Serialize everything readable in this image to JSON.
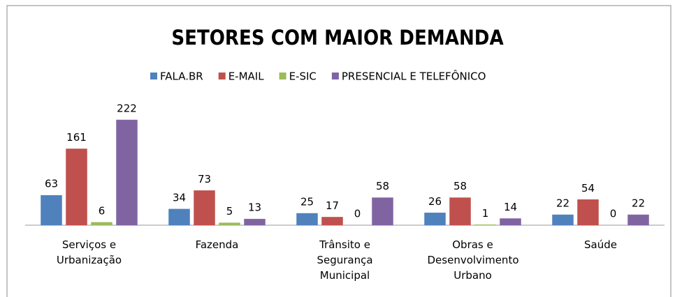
{
  "chart_data": {
    "type": "bar",
    "title": "SETORES COM MAIOR DEMANDA",
    "categories": [
      "Serviços e Urbanização",
      "Fazenda",
      "Trânsito e Segurança Municipal",
      "Obras e Desenvolvimento Urbano",
      "Saúde"
    ],
    "series": [
      {
        "name": "FALA.BR",
        "color": "#4f81bd",
        "values": [
          63,
          34,
          25,
          26,
          22
        ]
      },
      {
        "name": "E-MAIL",
        "color": "#c0504d",
        "values": [
          161,
          73,
          17,
          58,
          54
        ]
      },
      {
        "name": "E-SIC",
        "color": "#9bbb59",
        "values": [
          6,
          5,
          0,
          1,
          0
        ]
      },
      {
        "name": "PRESENCIAL E TELEFÔNICO",
        "color": "#8064a2",
        "values": [
          222,
          13,
          58,
          14,
          22
        ]
      }
    ],
    "legend": "top"
  }
}
